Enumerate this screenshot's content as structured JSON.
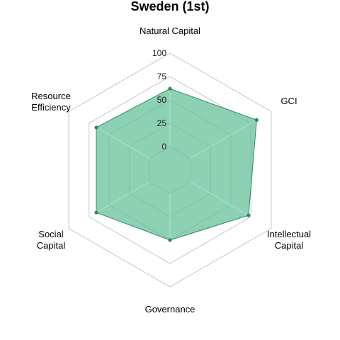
{
  "chart_data": {
    "type": "radar",
    "title": "Sweden (1st)",
    "axes": [
      "Natural Capital",
      "GCI",
      "Intellectual Capital",
      "Governance",
      "Social Capital",
      "Resource Efficiency"
    ],
    "axis_label_lines": [
      [
        "Natural Capital"
      ],
      [
        "GCI"
      ],
      [
        "Intellectual",
        "Capital"
      ],
      [
        "Governance"
      ],
      [
        "Social",
        "Capital"
      ],
      [
        "Resource",
        "Efficiency"
      ]
    ],
    "range": [
      0,
      100
    ],
    "ticks": [
      0,
      25,
      50,
      75,
      100
    ],
    "tick_labels": [
      "0",
      "25",
      "50",
      "75",
      "100"
    ],
    "grid_levels": [
      0,
      25,
      50,
      75,
      100
    ],
    "series": [
      {
        "name": "Sweden",
        "values": [
          62,
          82,
          72,
          50,
          66,
          66
        ],
        "color": "#2e8b67",
        "fill": "#5fbf95"
      }
    ]
  }
}
